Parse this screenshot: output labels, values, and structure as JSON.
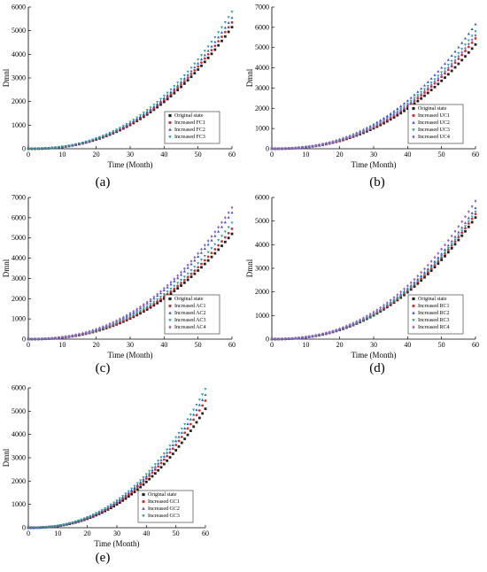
{
  "chart_data": [
    {
      "id": "a",
      "type": "scatter",
      "panel_label": "(a)",
      "xlabel": "Time (Month)",
      "ylabel": "Dmnl",
      "xlim": [
        0,
        60
      ],
      "ylim": [
        0,
        6000
      ],
      "xticks": [
        0,
        10,
        20,
        30,
        40,
        50,
        60
      ],
      "yticks": [
        0,
        1000,
        2000,
        3000,
        4000,
        5000,
        6000
      ],
      "legend_position": "lower-right",
      "series": [
        {
          "name": "Original state",
          "marker": "square",
          "color": "#222222",
          "final": 5150
        },
        {
          "name": "Increased FC1",
          "marker": "circle",
          "color": "#d03030",
          "final": 5350
        },
        {
          "name": "Increased FC2",
          "marker": "triangle",
          "color": "#3050d0",
          "final": 5550
        },
        {
          "name": "Increased FC3",
          "marker": "triangle-down",
          "color": "#20a0a0",
          "final": 5800
        }
      ]
    },
    {
      "id": "b",
      "type": "scatter",
      "panel_label": "(b)",
      "xlabel": "Time (Month)",
      "ylabel": "Dmnl",
      "xlim": [
        0,
        60
      ],
      "ylim": [
        0,
        7000
      ],
      "xticks": [
        0,
        10,
        20,
        30,
        40,
        50,
        60
      ],
      "yticks": [
        0,
        1000,
        2000,
        3000,
        4000,
        5000,
        6000,
        7000
      ],
      "legend_position": "lower-right",
      "series": [
        {
          "name": "Original state",
          "marker": "square",
          "color": "#222222",
          "final": 5150
        },
        {
          "name": "Increased UC1",
          "marker": "circle",
          "color": "#d03030",
          "final": 5450
        },
        {
          "name": "Increased UC2",
          "marker": "triangle",
          "color": "#3050d0",
          "final": 6150
        },
        {
          "name": "Increased UC3",
          "marker": "triangle-down",
          "color": "#20a0a0",
          "final": 5800
        },
        {
          "name": "Increased UC4",
          "marker": "diamond",
          "color": "#9060d0",
          "final": 5600
        }
      ]
    },
    {
      "id": "c",
      "type": "scatter",
      "panel_label": "(c)",
      "xlabel": "Time (Month)",
      "ylabel": "Dmnl",
      "xlim": [
        0,
        60
      ],
      "ylim": [
        0,
        7000
      ],
      "xticks": [
        0,
        10,
        20,
        30,
        40,
        50,
        60
      ],
      "yticks": [
        0,
        1000,
        2000,
        3000,
        4000,
        5000,
        6000,
        7000
      ],
      "legend_position": "lower-right",
      "series": [
        {
          "name": "Original state",
          "marker": "square",
          "color": "#222222",
          "final": 5200
        },
        {
          "name": "Increased AC1",
          "marker": "circle",
          "color": "#d03030",
          "final": 5450
        },
        {
          "name": "Increased AC2",
          "marker": "triangle",
          "color": "#3050d0",
          "final": 6250
        },
        {
          "name": "Increased AC3",
          "marker": "triangle-down",
          "color": "#20a0a0",
          "final": 5750
        },
        {
          "name": "Increased AC4",
          "marker": "diamond",
          "color": "#9060d0",
          "final": 6500
        }
      ]
    },
    {
      "id": "d",
      "type": "scatter",
      "panel_label": "(d)",
      "xlabel": "Time (Month)",
      "ylabel": "Dmnl",
      "xlim": [
        0,
        60
      ],
      "ylim": [
        0,
        6000
      ],
      "xticks": [
        0,
        10,
        20,
        30,
        40,
        50,
        60
      ],
      "yticks": [
        0,
        1000,
        2000,
        3000,
        4000,
        5000,
        6000
      ],
      "legend_position": "lower-right",
      "series": [
        {
          "name": "Original state",
          "marker": "square",
          "color": "#222222",
          "final": 5150
        },
        {
          "name": "Increased RC1",
          "marker": "circle",
          "color": "#d03030",
          "final": 5300
        },
        {
          "name": "Increased RC2",
          "marker": "triangle",
          "color": "#3050d0",
          "final": 5550
        },
        {
          "name": "Increased RC3",
          "marker": "triangle-down",
          "color": "#20a0a0",
          "final": 5400
        },
        {
          "name": "Increased RC4",
          "marker": "diamond",
          "color": "#9060d0",
          "final": 5850
        }
      ]
    },
    {
      "id": "e",
      "type": "scatter",
      "panel_label": "(e)",
      "xlabel": "Time (Month)",
      "ylabel": "Dmnl",
      "xlim": [
        0,
        60
      ],
      "ylim": [
        0,
        6000
      ],
      "xticks": [
        0,
        10,
        20,
        30,
        40,
        50,
        60
      ],
      "yticks": [
        0,
        1000,
        2000,
        3000,
        4000,
        5000,
        6000
      ],
      "legend_position": "lower-right",
      "series": [
        {
          "name": "Original state",
          "marker": "square",
          "color": "#222222",
          "final": 5100
        },
        {
          "name": "Increased GC1",
          "marker": "circle",
          "color": "#d03030",
          "final": 5450
        },
        {
          "name": "Increased GC2",
          "marker": "triangle",
          "color": "#3050d0",
          "final": 5700
        },
        {
          "name": "Increased GC3",
          "marker": "triangle-down",
          "color": "#20a0a0",
          "final": 5950
        }
      ]
    }
  ]
}
